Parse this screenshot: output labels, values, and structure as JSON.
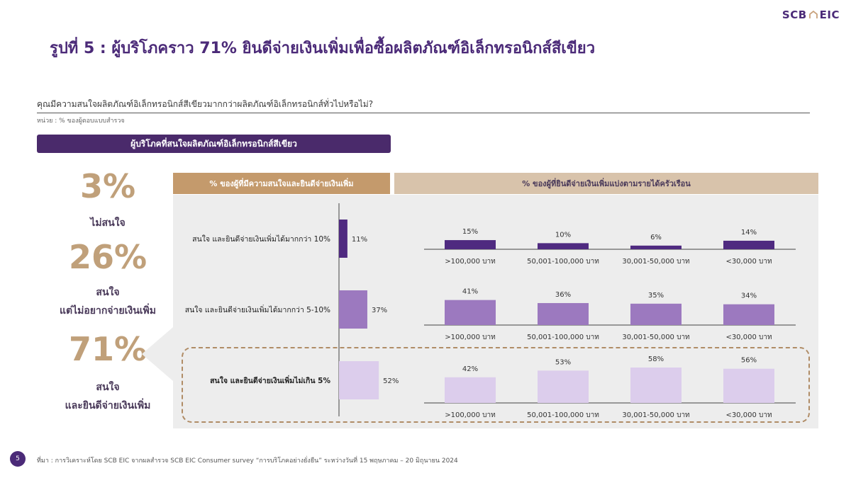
{
  "logo": {
    "left": "SCB",
    "right": "EIC"
  },
  "title": "รูปที่ 5 : ผู้บริโภคราว 71% ยินดีจ่ายเงินเพิ่มเพื่อซื้อผลิตภัณฑ์อิเล็กทรอนิกส์สีเขียว",
  "question": "คุณมีความสนใจผลิตภัณฑ์อิเล็กทรอนิกส์สีเขียวมากกว่าผลิตภัณฑ์อิเล็กทรอนิกส์ทั่วไปหรือไม่?",
  "unit": "หน่วย : % ของผู้ตอบแบบสำรวจ",
  "banner": "ผู้บริโภคที่สนใจผลิตภัณฑ์อิเล็กทรอนิกส์สีเขียว",
  "summary": [
    {
      "pct": "3%",
      "label1": "ไม่สนใจ",
      "label2": ""
    },
    {
      "pct": "26%",
      "label1": "สนใจ",
      "label2": "แต่ไม่อยากจ่ายเงินเพิ่ม"
    },
    {
      "pct": "71%",
      "label1": "สนใจ",
      "label2": "และยินดีจ่ายเงินเพิ่ม"
    }
  ],
  "colors": {
    "purple": "#4b2a78",
    "dark_bar": "#4f2a80",
    "mid_bar": "#9c79bf",
    "light_bar": "#dccdec",
    "gold": "#c0a07a"
  },
  "chart_data": [
    {
      "type": "bar",
      "orientation": "horizontal",
      "title": "% ของผู้ที่มีความสนใจและยินดีจ่ายเงินเพิ่ม",
      "categories": [
        "สนใจ และยินดีจ่ายเงินเพิ่มได้มากกว่า 10%",
        "สนใจ และยินดีจ่ายเงินเพิ่มได้มากกว่า 5-10%",
        "สนใจ และยินดีจ่ายเงินเพิ่มไม่เกิน 5%"
      ],
      "values": [
        11,
        37,
        52
      ],
      "value_labels": [
        "11%",
        "37%",
        "52%"
      ],
      "highlight_index": 2
    },
    {
      "type": "bar",
      "title": "% ของผู้ที่ยินดีจ่ายเงินเพิ่มแบ่งตามรายได้ครัวเรือน",
      "categories": [
        ">100,000 บาท",
        "50,001-100,000 บาท",
        "30,001-50,000 บาท",
        "<30,000 บาท"
      ],
      "series": [
        {
          "group": "สนใจ และยินดีจ่ายเงินเพิ่มได้มากกว่า 10%",
          "values": [
            15,
            10,
            6,
            14
          ],
          "value_labels": [
            "15%",
            "10%",
            "6%",
            "14%"
          ]
        },
        {
          "group": "สนใจ และยินดีจ่ายเงินเพิ่มได้มากกว่า 5-10%",
          "values": [
            41,
            36,
            35,
            34
          ],
          "value_labels": [
            "41%",
            "36%",
            "35%",
            "34%"
          ]
        },
        {
          "group": "สนใจ และยินดีจ่ายเงินเพิ่มไม่เกิน 5%",
          "values": [
            42,
            53,
            58,
            56
          ],
          "value_labels": [
            "42%",
            "53%",
            "58%",
            "56%"
          ]
        }
      ]
    }
  ],
  "footer": {
    "page": "5",
    "source": "ที่มา : การวิเคราะห์โดย SCB EIC จากผลสำรวจ SCB EIC Consumer survey “การบริโภคอย่างยั่งยืน” ระหว่างวันที่ 15 พฤษภาคม – 20 มิถุนายน 2024"
  }
}
